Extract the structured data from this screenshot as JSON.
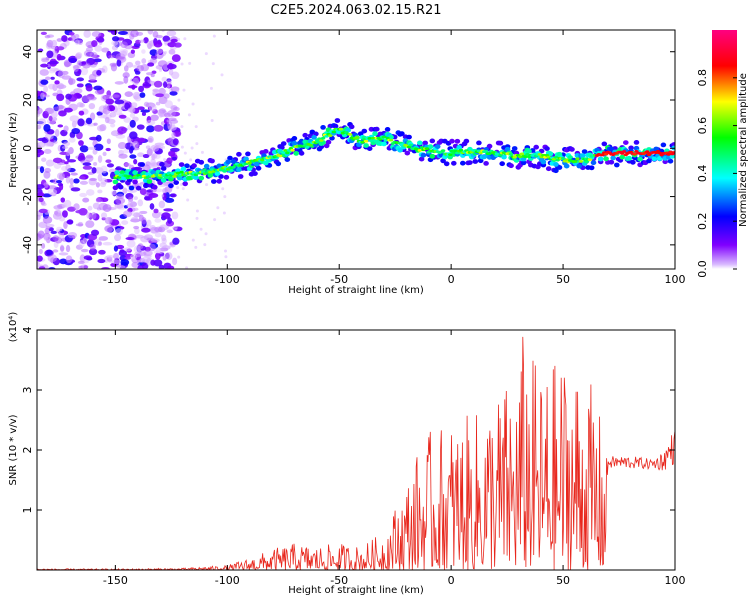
{
  "figure": {
    "title": "C2E5.2024.063.02.15.R21"
  },
  "chart_data": [
    {
      "type": "heatmap",
      "xlabel": "Height of straight line (km)",
      "ylabel": "Frequency (Hz)",
      "xlim": [
        -185,
        100
      ],
      "ylim": [
        -50,
        49
      ],
      "xticks": [
        -150,
        -100,
        -50,
        0,
        50,
        100
      ],
      "yticks": [
        -40,
        -20,
        0,
        20,
        40
      ],
      "colorbar": {
        "label": "Normalized spectral amplitude",
        "range": [
          0,
          1
        ],
        "ticks": [
          "0.0",
          "0.2",
          "0.4",
          "0.6",
          "0.8"
        ],
        "tick_values": [
          0.0,
          0.2,
          0.4,
          0.6,
          0.8
        ],
        "colormap": [
          "#ffffff",
          "#8000ff",
          "#0000ff",
          "#00ffff",
          "#00ff00",
          "#ffff00",
          "#ff0000",
          "#ff0080"
        ]
      },
      "ridge": {
        "x": [
          -185,
          -150,
          -125,
          -110,
          -100,
          -90,
          -80,
          -70,
          -60,
          -50,
          -45,
          -40,
          -30,
          -25,
          -20,
          -10,
          0,
          10,
          20,
          30,
          40,
          50,
          60,
          65,
          70,
          80,
          90,
          100
        ],
        "freq": [
          -12,
          -12,
          -11,
          -10,
          -8,
          -6,
          -4,
          0,
          3,
          8,
          5,
          3,
          4,
          2,
          1,
          -1,
          -2,
          -1,
          -2,
          -3,
          -3,
          -5,
          -5,
          -3,
          -2,
          -2,
          -2,
          -2
        ]
      },
      "noise_region_x": [
        -185,
        -130
      ]
    },
    {
      "type": "line",
      "xlabel": "Height of straight line (km)",
      "ylabel": "SNR (10 * v/v)",
      "y_multiplier": "(x10⁴)",
      "xlim": [
        -185,
        100
      ],
      "ylim": [
        0,
        4
      ],
      "xticks": [
        -150,
        -100,
        -50,
        0,
        50,
        100
      ],
      "yticks": [
        1,
        2,
        3,
        4
      ],
      "series": [
        {
          "color": "#e8271d",
          "envelope": {
            "x": [
              -185,
              -150,
              -120,
              -100,
              -90,
              -80,
              -70,
              -60,
              -50,
              -40,
              -30,
              -20,
              -15,
              -10,
              0,
              10,
              20,
              30,
              32,
              40,
              50,
              55,
              60,
              65,
              68,
              69,
              70,
              80,
              90,
              95,
              100
            ],
            "min": [
              0,
              0,
              0,
              0,
              0,
              0,
              0,
              0,
              0,
              0,
              0,
              0,
              0,
              0,
              0,
              0,
              0,
              0,
              0,
              0,
              0,
              0,
              0,
              0,
              0,
              0,
              1.6,
              1.6,
              1.6,
              1.5,
              1.5
            ],
            "max": [
              0.02,
              0.02,
              0.03,
              0.08,
              0.2,
              0.35,
              0.45,
              0.4,
              0.45,
              0.4,
              0.65,
              1.5,
              2.0,
              2.3,
              2.5,
              2.6,
              3.0,
              3.3,
              4.0,
              3.3,
              3.6,
              3.5,
              3.3,
              2.9,
              2.3,
              1.9,
              1.9,
              1.9,
              1.85,
              2.0,
              2.4
            ]
          }
        }
      ]
    }
  ]
}
